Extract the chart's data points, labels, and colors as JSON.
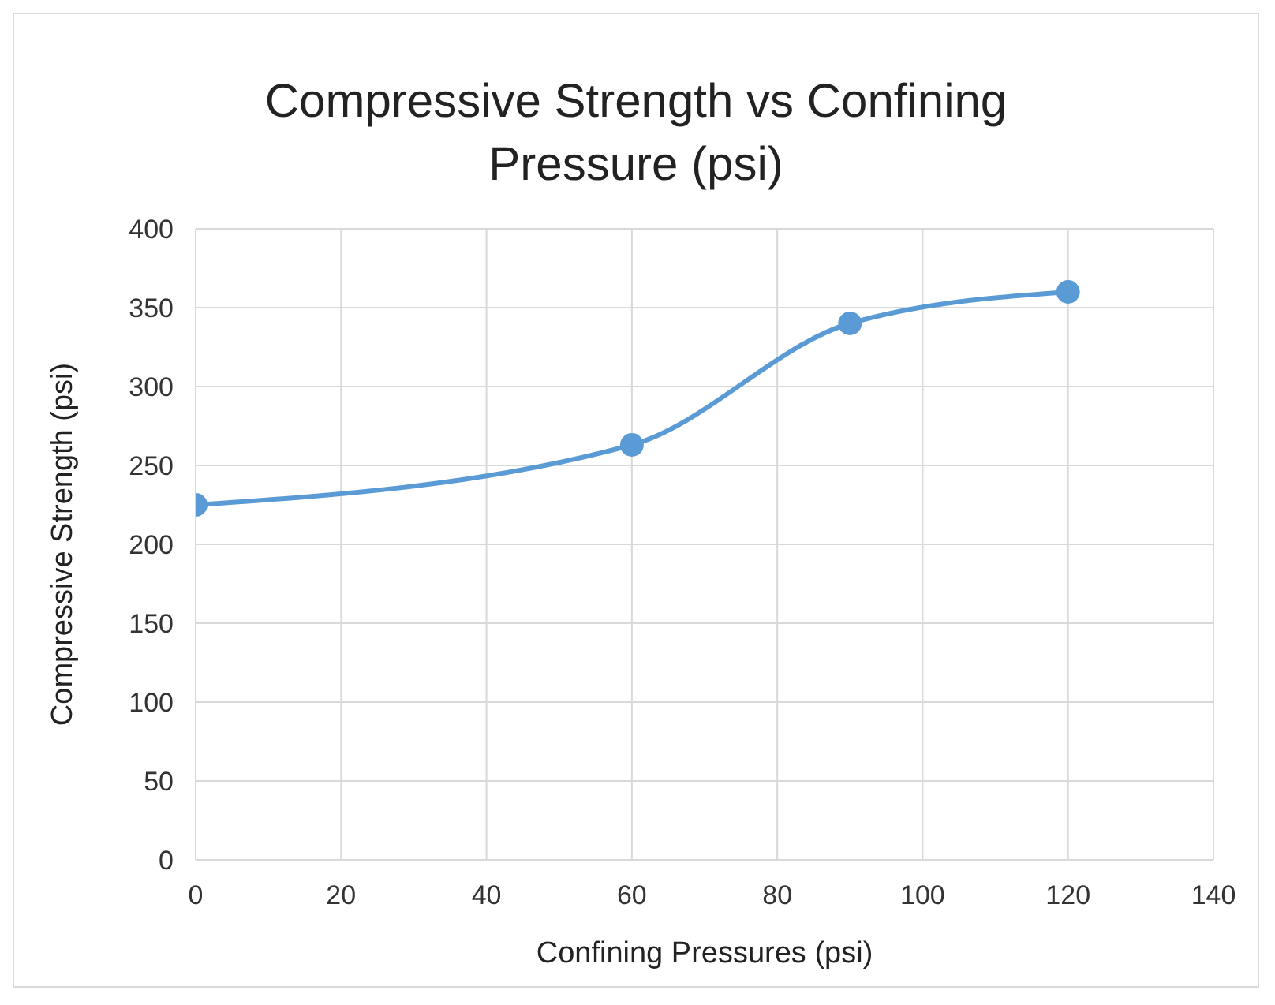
{
  "chart_data": {
    "type": "line",
    "title": "Compressive Strength vs Confining Pressure (psi)",
    "xlabel": "Confining Pressures (psi)",
    "ylabel": "Compressive Strength (psi)",
    "x": [
      0,
      60,
      90,
      120
    ],
    "series": [
      {
        "color": "#5b9bd5",
        "values": [
          225,
          263,
          340,
          360
        ]
      }
    ],
    "xlim": [
      0,
      140
    ],
    "xticks": [
      0,
      20,
      40,
      60,
      80,
      100,
      120,
      140
    ],
    "ylim": [
      0,
      400
    ],
    "yticks": [
      0,
      50,
      100,
      150,
      200,
      250,
      300,
      350,
      400
    ],
    "grid": true,
    "legend": false,
    "marker": "circle",
    "line_style": "solid"
  }
}
